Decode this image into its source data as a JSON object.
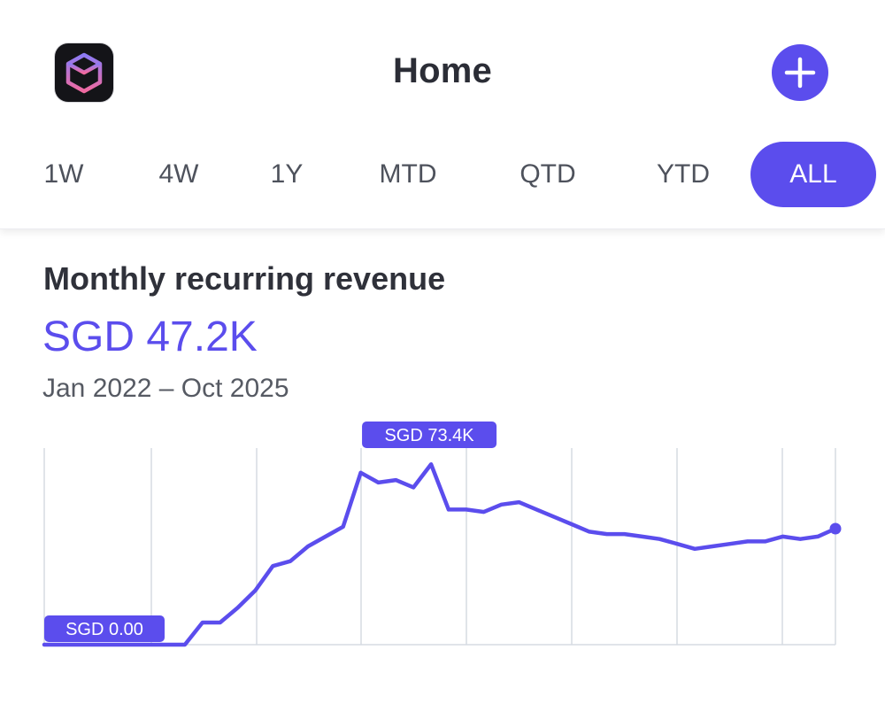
{
  "header": {
    "title": "Home",
    "app_icon": "cube-icon",
    "add_icon": "plus-icon",
    "accent": "#5b4ded"
  },
  "tabs": [
    {
      "label": "1W",
      "active": false
    },
    {
      "label": "4W",
      "active": false
    },
    {
      "label": "1Y",
      "active": false
    },
    {
      "label": "MTD",
      "active": false
    },
    {
      "label": "QTD",
      "active": false
    },
    {
      "label": "YTD",
      "active": false
    },
    {
      "label": "ALL",
      "active": true
    }
  ],
  "metric": {
    "title": "Monthly recurring revenue",
    "value": "SGD 47.2K",
    "range": "Jan 2022 – Oct 2025"
  },
  "chart_data": {
    "type": "line",
    "currency": "SGD",
    "max_label": "SGD 73.4K",
    "min_label": "SGD 0.00",
    "start": "2022-01",
    "end": "2025-10",
    "ylim": [
      0,
      80
    ],
    "grid": "vertical",
    "series": [
      {
        "values": [
          0,
          0,
          0,
          0,
          0,
          0,
          0,
          0,
          0,
          9,
          9,
          15,
          22,
          32,
          34,
          40,
          44,
          48,
          70,
          66,
          67,
          64,
          73.4,
          55,
          55,
          54,
          57,
          58,
          55,
          52,
          49,
          46,
          45,
          45,
          44,
          43,
          41,
          39,
          40,
          41,
          42,
          42,
          44,
          43,
          44,
          47.2
        ]
      }
    ]
  }
}
